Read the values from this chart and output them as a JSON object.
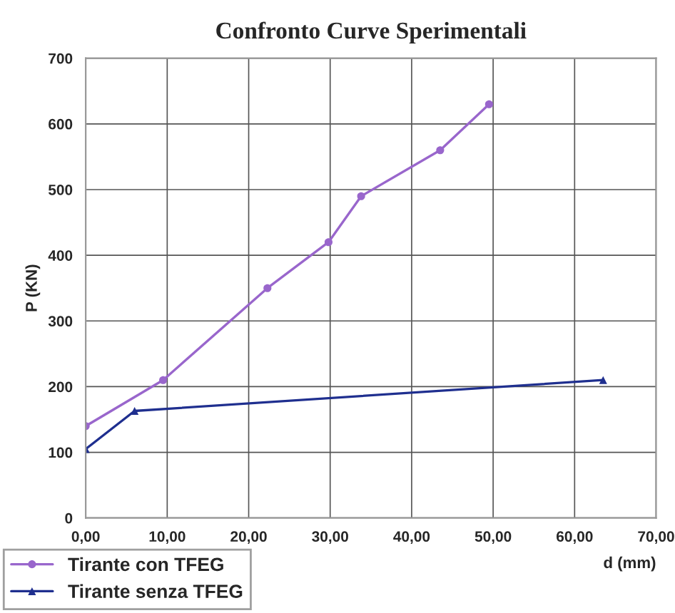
{
  "chart_data": {
    "type": "line",
    "title": "Confronto Curve Sperimentali",
    "xlabel": "d (mm)",
    "ylabel": "P (KN)",
    "series": [
      {
        "name": "Tirante con TFEG",
        "color": "#9966cc",
        "marker": "circle",
        "x": [
          0,
          9.5,
          22.3,
          29.8,
          33.8,
          43.5,
          49.5
        ],
        "values": [
          140,
          210,
          350,
          420,
          490,
          560,
          630
        ]
      },
      {
        "name": "Tirante senza TFEG",
        "color": "#1f2f8f",
        "marker": "triangle",
        "x": [
          0,
          6,
          63.5
        ],
        "values": [
          105,
          163,
          210
        ]
      }
    ],
    "xlim": [
      0,
      70
    ],
    "ylim": [
      0,
      700
    ],
    "xticks": [
      {
        "value": 0,
        "label": "0,00"
      },
      {
        "value": 10,
        "label": "10,00"
      },
      {
        "value": 20,
        "label": "20,00"
      },
      {
        "value": 30,
        "label": "30,00"
      },
      {
        "value": 40,
        "label": "40,00"
      },
      {
        "value": 50,
        "label": "50,00"
      },
      {
        "value": 60,
        "label": "60,00"
      },
      {
        "value": 70,
        "label": "70,00"
      }
    ],
    "yticks": [
      0,
      100,
      200,
      300,
      400,
      500,
      600,
      700
    ],
    "grid": true,
    "legend": "bottom left",
    "line_style": "solid"
  }
}
